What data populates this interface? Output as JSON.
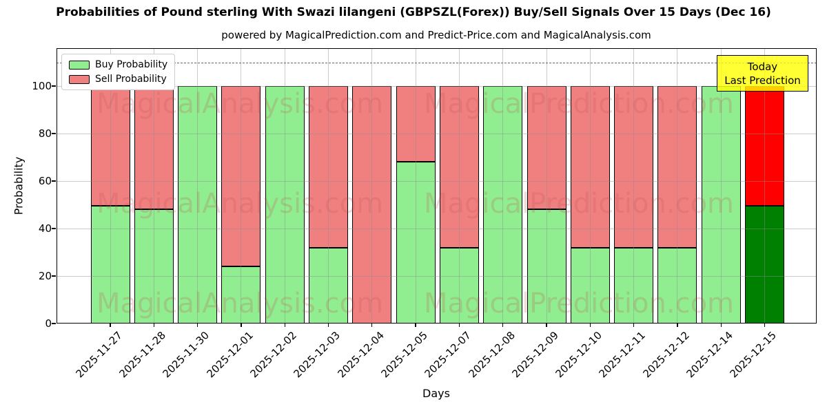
{
  "chart": {
    "title": "Probabilities of Pound sterling With Swazi lilangeni (GBPSZL(Forex)) Buy/Sell Signals Over 15 Days (Dec 16)",
    "subtitle": "powered by MagicalPrediction.com and Predict-Price.com and MagicalAnalysis.com",
    "xlabel": "Days",
    "ylabel": "Probability"
  },
  "annotation": {
    "line1": "Today",
    "line2": "Last Prediction",
    "background": "#ffff00",
    "border": "#000000"
  },
  "watermarks": [
    "MagicalAnalysis.com",
    "MagicalPrediction.com"
  ],
  "chart_data": {
    "type": "bar",
    "stacked": true,
    "title": "Probabilities of Pound sterling With Swazi lilangeni (GBPSZL(Forex)) Buy/Sell Signals Over 15 Days (Dec 16)",
    "xlabel": "Days",
    "ylabel": "Probability",
    "categories": [
      "2025-11-27",
      "2025-11-28",
      "2025-11-30",
      "2025-12-01",
      "2025-12-02",
      "2025-12-03",
      "2025-12-04",
      "2025-12-05",
      "2025-12-07",
      "2025-12-08",
      "2025-12-09",
      "2025-12-10",
      "2025-12-11",
      "2025-12-12",
      "2025-12-14",
      "2025-12-15"
    ],
    "series": [
      {
        "name": "Buy Probability",
        "color": "#90ee90",
        "values": [
          49.5,
          48,
          100,
          24,
          100,
          32,
          0,
          68,
          32,
          100,
          48,
          32,
          32,
          32,
          100,
          49.5
        ]
      },
      {
        "name": "Sell Probability",
        "color": "#f08080",
        "values": [
          50.5,
          52,
          0,
          76,
          0,
          68,
          100,
          32,
          68,
          0,
          52,
          68,
          68,
          68,
          0,
          50.5
        ]
      }
    ],
    "last_bar_colors": {
      "buy": "#008000",
      "sell": "#ff0000"
    },
    "ylim": [
      0,
      116
    ],
    "yticks": [
      0,
      20,
      40,
      60,
      80,
      100
    ],
    "dashed_line_y": 110,
    "grid": true,
    "legend_position": "upper left",
    "bar_edge_color": "#000000"
  }
}
